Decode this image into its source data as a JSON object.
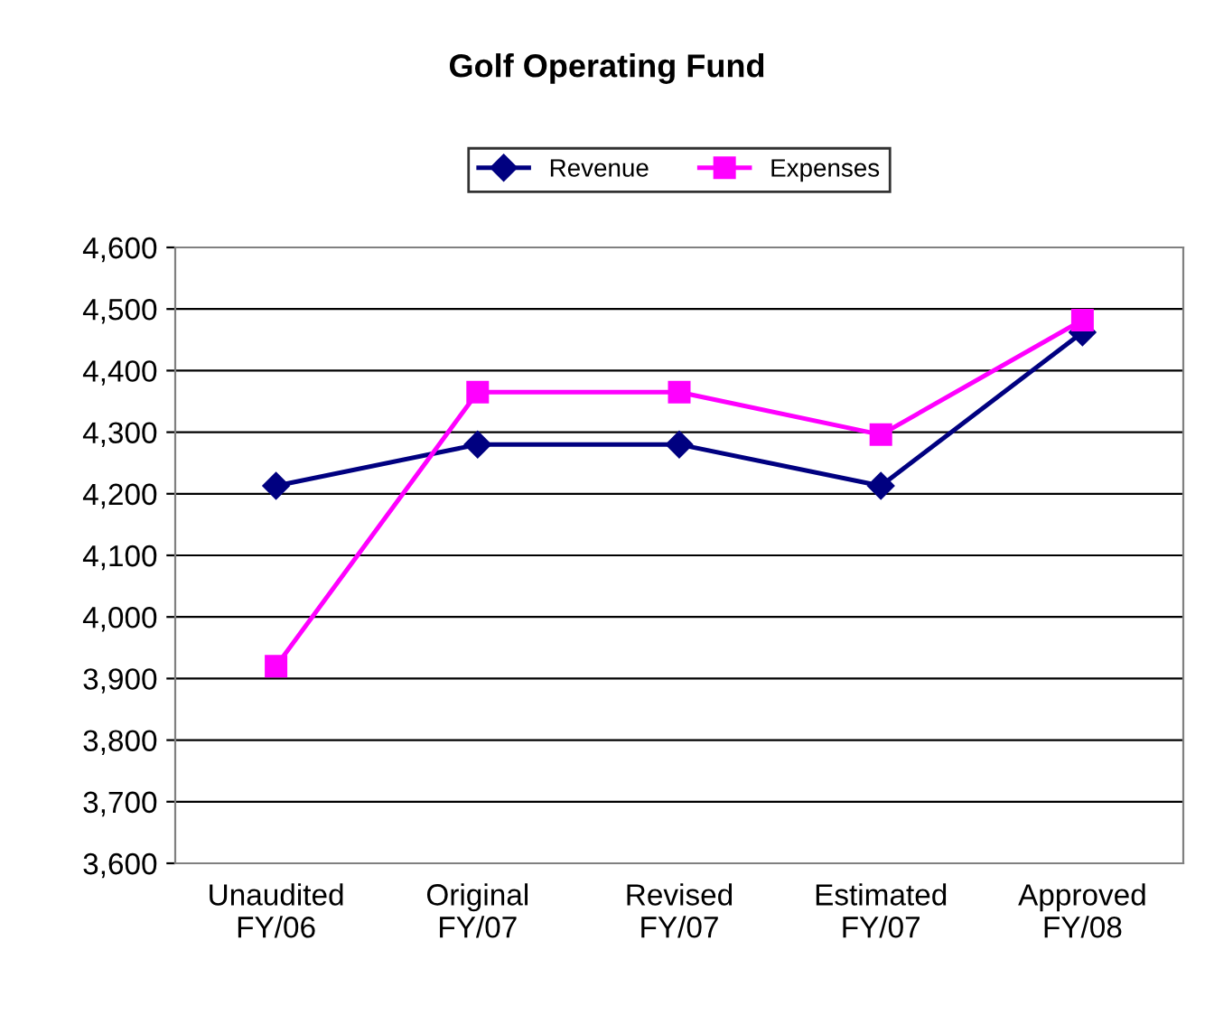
{
  "chart_data": {
    "type": "line",
    "title": "Golf Operating Fund",
    "categories": [
      "Unaudited\nFY/06",
      "Original\nFY/07",
      "Revised\nFY/07",
      "Estimated\nFY/07",
      "Approved\nFY/08"
    ],
    "series": [
      {
        "name": "Revenue",
        "color": "#000080",
        "marker": "diamond",
        "values": [
          4213,
          4280,
          4280,
          4213,
          4462
        ]
      },
      {
        "name": "Expenses",
        "color": "#ff00ff",
        "marker": "square",
        "values": [
          3920,
          4365,
          4365,
          4296,
          4482
        ]
      }
    ],
    "ylim": [
      3600,
      4600
    ],
    "yticks": [
      {
        "value": 3600,
        "label": "3,600"
      },
      {
        "value": 3700,
        "label": "3,700"
      },
      {
        "value": 3800,
        "label": "3,800"
      },
      {
        "value": 3900,
        "label": "3,900"
      },
      {
        "value": 4000,
        "label": "4,000"
      },
      {
        "value": 4100,
        "label": "4,100"
      },
      {
        "value": 4200,
        "label": "4,200"
      },
      {
        "value": 4300,
        "label": "4,300"
      },
      {
        "value": 4400,
        "label": "4,400"
      },
      {
        "value": 4500,
        "label": "4,500"
      },
      {
        "value": 4600,
        "label": "4,600"
      }
    ],
    "grid": "y",
    "legend": "top",
    "line_style": "solid"
  }
}
